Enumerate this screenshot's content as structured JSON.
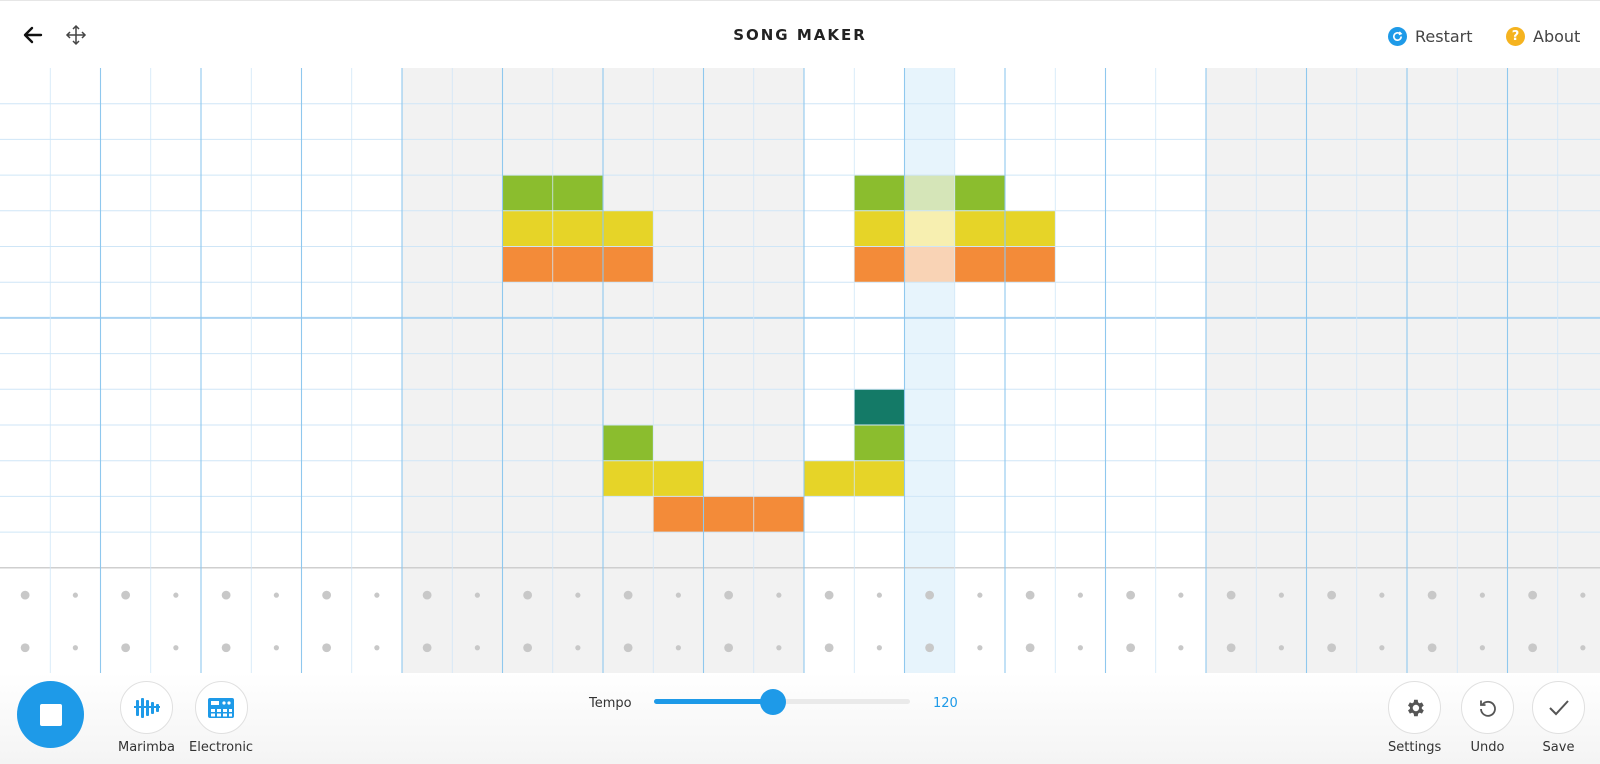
{
  "app": {
    "title": "SONG MAKER"
  },
  "header": {
    "restart_label": "Restart",
    "about_label": "About"
  },
  "instruments": {
    "melody_label": "Marimba",
    "rhythm_label": "Electronic"
  },
  "tempo": {
    "label": "Tempo",
    "value": "120",
    "min": 50,
    "max": 200
  },
  "actions": {
    "settings_label": "Settings",
    "undo_label": "Undo",
    "save_label": "Save"
  },
  "grid": {
    "columns": 32,
    "melody_rows": 14,
    "rhythm_rows": 2,
    "playhead_column": 18,
    "shaded_bars": [
      2,
      3,
      6,
      7
    ],
    "notes": [
      {
        "col": 10,
        "row": 3,
        "color": "#8bbd2e"
      },
      {
        "col": 11,
        "row": 3,
        "color": "#8bbd2e"
      },
      {
        "col": 10,
        "row": 4,
        "color": "#e6d428"
      },
      {
        "col": 11,
        "row": 4,
        "color": "#e6d428"
      },
      {
        "col": 12,
        "row": 4,
        "color": "#e6d428"
      },
      {
        "col": 10,
        "row": 5,
        "color": "#f38b39"
      },
      {
        "col": 11,
        "row": 5,
        "color": "#f38b39"
      },
      {
        "col": 12,
        "row": 5,
        "color": "#f38b39"
      },
      {
        "col": 17,
        "row": 3,
        "color": "#8bbd2e"
      },
      {
        "col": 18,
        "row": 3,
        "color": "#d5e5b8"
      },
      {
        "col": 19,
        "row": 3,
        "color": "#8bbd2e"
      },
      {
        "col": 17,
        "row": 4,
        "color": "#e6d428"
      },
      {
        "col": 18,
        "row": 4,
        "color": "#f7efb0"
      },
      {
        "col": 19,
        "row": 4,
        "color": "#e6d428"
      },
      {
        "col": 20,
        "row": 4,
        "color": "#e6d428"
      },
      {
        "col": 17,
        "row": 5,
        "color": "#f38b39"
      },
      {
        "col": 18,
        "row": 5,
        "color": "#f9d3b5"
      },
      {
        "col": 19,
        "row": 5,
        "color": "#f38b39"
      },
      {
        "col": 20,
        "row": 5,
        "color": "#f38b39"
      },
      {
        "col": 17,
        "row": 9,
        "color": "#147a67"
      },
      {
        "col": 12,
        "row": 10,
        "color": "#8bbd2e"
      },
      {
        "col": 17,
        "row": 10,
        "color": "#8bbd2e"
      },
      {
        "col": 12,
        "row": 11,
        "color": "#e6d428"
      },
      {
        "col": 13,
        "row": 11,
        "color": "#e6d428"
      },
      {
        "col": 16,
        "row": 11,
        "color": "#e6d428"
      },
      {
        "col": 17,
        "row": 11,
        "color": "#e6d428"
      },
      {
        "col": 13,
        "row": 12,
        "color": "#f38b39"
      },
      {
        "col": 14,
        "row": 12,
        "color": "#f38b39"
      },
      {
        "col": 15,
        "row": 12,
        "color": "#f38b39"
      }
    ]
  },
  "colors": {
    "accent": "#1e9ae8",
    "shade": "#f2f2f2",
    "playhead": "#e7f4fc",
    "grid_line": "#cfe6f7",
    "beat_line": "#8fc8ee",
    "restart_icon": "#1e9ae8",
    "about_icon": "#f5b31f"
  },
  "icons": {
    "back": "back-arrow-icon",
    "move": "move-icon",
    "restart": "restart-icon",
    "about": "help-icon",
    "marimba": "marimba-icon",
    "electronic": "drum-machine-icon",
    "settings": "gear-icon",
    "undo": "undo-icon",
    "save": "check-icon"
  }
}
